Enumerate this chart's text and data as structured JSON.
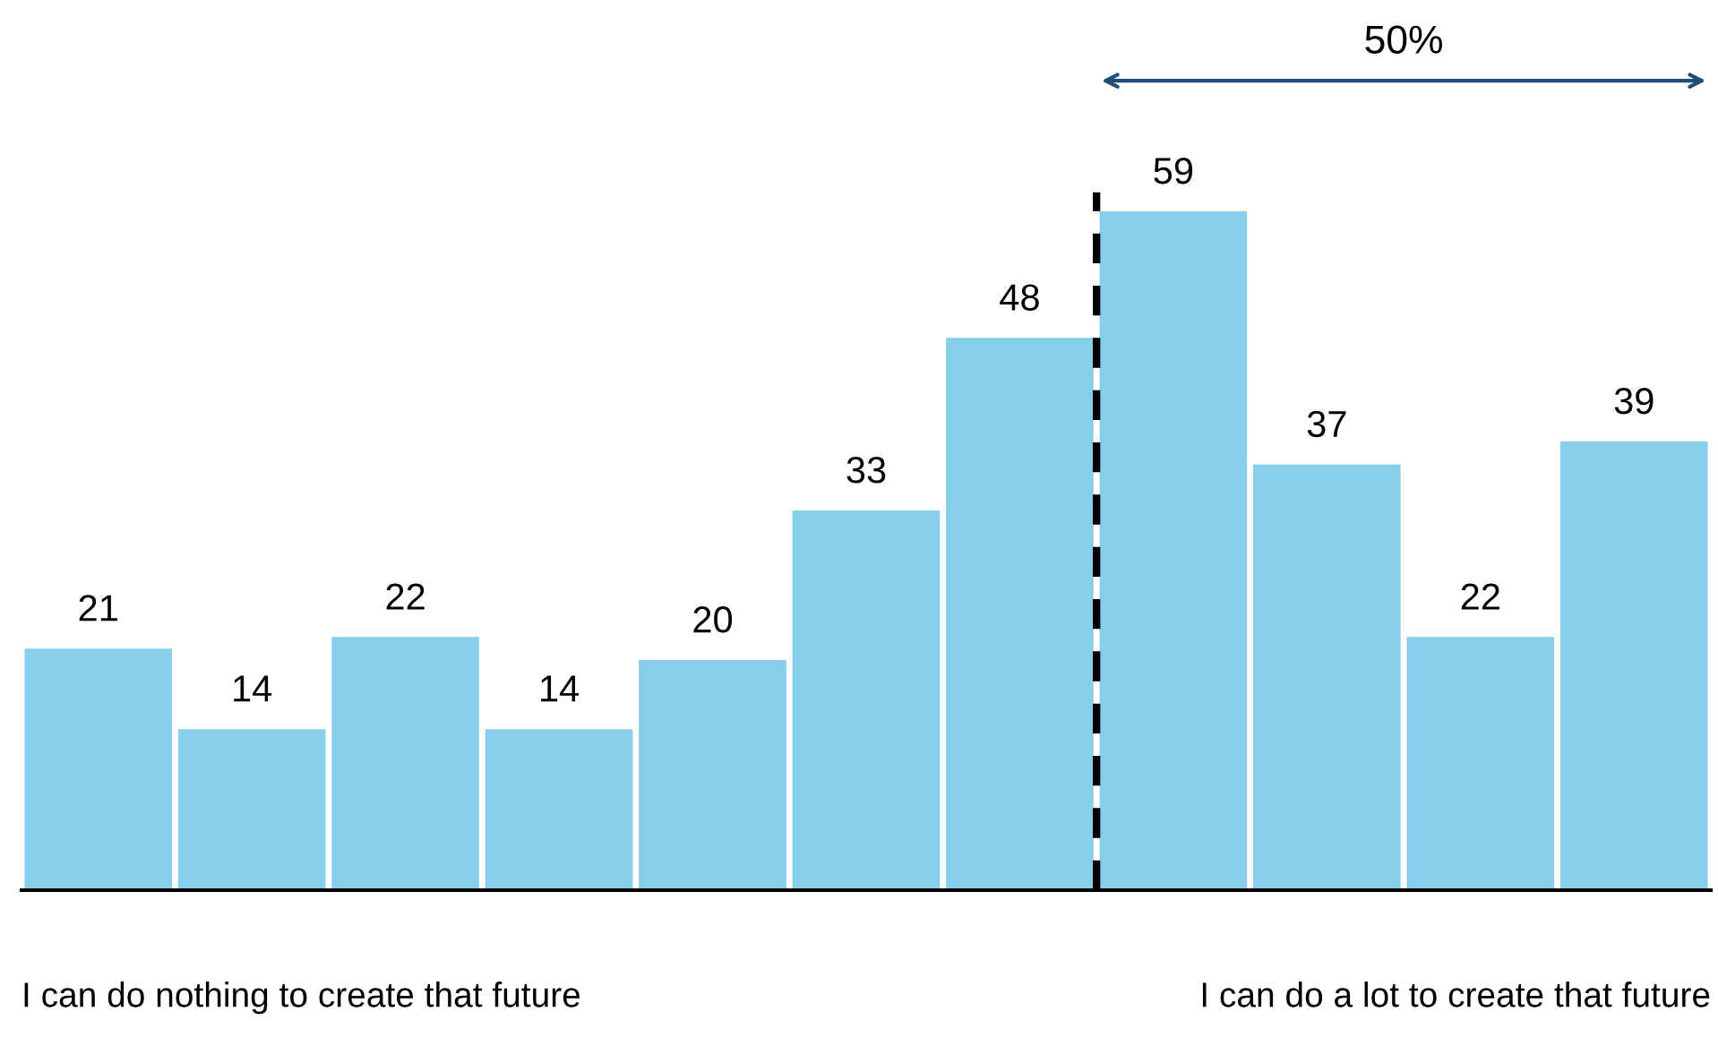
{
  "chart_data": {
    "type": "bar",
    "categories": [
      null,
      null,
      null,
      null,
      null,
      null,
      null,
      null,
      null,
      null,
      null
    ],
    "values": [
      21,
      14,
      22,
      14,
      20,
      33,
      48,
      59,
      37,
      22,
      39
    ],
    "color": "#87ceeb",
    "data_labels": true,
    "grid": false,
    "legend": false,
    "annotations": [
      "50%",
      "I can do nothing to create that future",
      "I can do a lot to create that future"
    ]
  }
}
